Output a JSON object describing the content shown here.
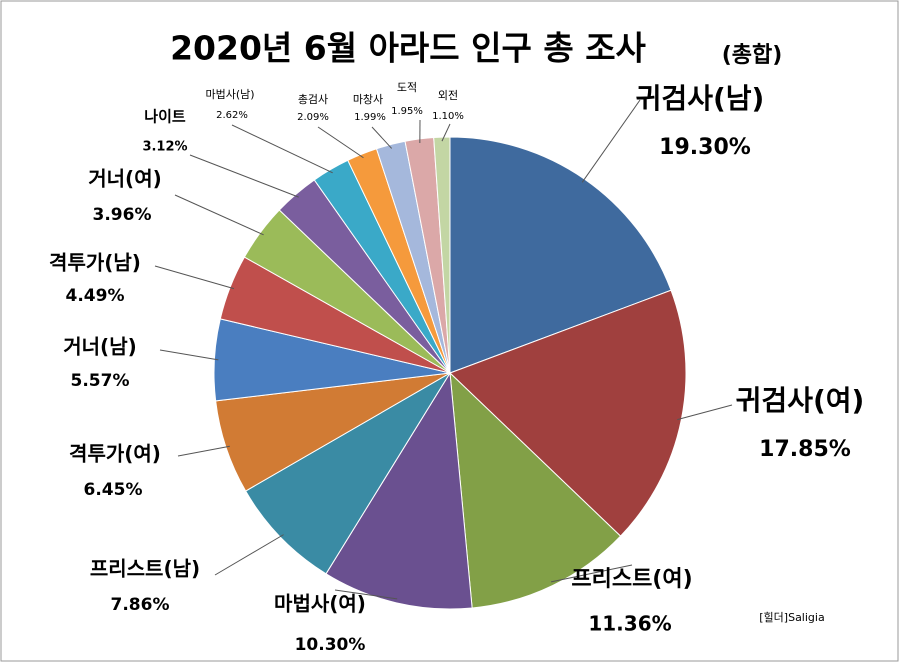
{
  "chart_data": {
    "type": "pie",
    "title": "2020년 6월 아라드 인구 총 조사",
    "subtitle": "(총합)",
    "annotation": "[힐더]Saligia",
    "categories": [
      "귀검사(남)",
      "귀검사(여)",
      "프리스트(여)",
      "마법사(여)",
      "프리스트(남)",
      "격투가(여)",
      "거너(남)",
      "격투가(남)",
      "거너(여)",
      "나이트",
      "마법사(남)",
      "총검사",
      "마창사",
      "도적",
      "외전"
    ],
    "values": [
      19.3,
      17.85,
      11.36,
      10.3,
      7.86,
      6.45,
      5.57,
      4.49,
      3.96,
      3.12,
      2.62,
      2.09,
      1.99,
      1.95,
      1.1
    ],
    "value_labels": [
      "19.30%",
      "17.85%",
      "11.36%",
      "10.30%",
      "7.86%",
      "6.45%",
      "5.57%",
      "4.49%",
      "3.96%",
      "3.12%",
      "2.62%",
      "2.09%",
      "1.99%",
      "1.95%",
      "1.10%"
    ],
    "colors": [
      "#3f6a9e",
      "#a0403e",
      "#82a047",
      "#6a5090",
      "#3a8ba4",
      "#d17b34",
      "#4a7ec0",
      "#c04f4c",
      "#9bbb59",
      "#7a5e9e",
      "#3aa9c8",
      "#f59a3c",
      "#a5b8dc",
      "#dba8a8",
      "#c3d6a4"
    ]
  }
}
